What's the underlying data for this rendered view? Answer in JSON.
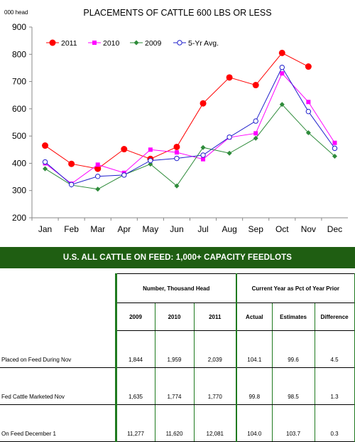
{
  "chart_data": {
    "type": "line",
    "title": "PLACEMENTS  OF CATTLE  600 LBS OR LESS",
    "unit_label": "000 head",
    "categories": [
      "Jan",
      "Feb",
      "Mar",
      "Apr",
      "May",
      "Jun",
      "Jul",
      "Aug",
      "Sep",
      "Oct",
      "Nov",
      "Dec"
    ],
    "ylim": [
      200,
      900
    ],
    "yticks": [
      200,
      300,
      400,
      500,
      600,
      700,
      800,
      900
    ],
    "grid": false,
    "legend_position": "top-left",
    "series": [
      {
        "name": "2011",
        "color": "#ff0000",
        "marker": "circle-filled",
        "values": [
          465,
          398,
          380,
          452,
          416,
          460,
          620,
          715,
          687,
          805,
          755,
          null
        ]
      },
      {
        "name": "2010",
        "color": "#ff00ff",
        "marker": "square-filled",
        "values": [
          400,
          325,
          395,
          365,
          450,
          440,
          415,
          495,
          510,
          730,
          625,
          475
        ]
      },
      {
        "name": "2009",
        "color": "#2e8b3a",
        "marker": "diamond-filled",
        "values": [
          380,
          320,
          305,
          358,
          397,
          317,
          458,
          437,
          492,
          616,
          512,
          426
        ]
      },
      {
        "name": "5-Yr Avg.",
        "color": "#2020cc",
        "marker": "circle-open",
        "values": [
          405,
          322,
          352,
          357,
          410,
          418,
          430,
          496,
          555,
          752,
          590,
          455
        ]
      }
    ]
  },
  "banner": {
    "title": "U.S. ALL CATTLE ON FEED: 1,000+ CAPACITY FEEDLOTS"
  },
  "table": {
    "group_headers": [
      "Number, Thousand Head",
      "Current Year as Pct of Year Prior"
    ],
    "columns": [
      "2009",
      "2010",
      "2011",
      "Actual",
      "Estimates",
      "Difference"
    ],
    "rows": [
      {
        "label": "Placed on Feed During Nov",
        "values": [
          "1,844",
          "1,959",
          "2,039",
          "104.1",
          "99.6",
          "4.5"
        ]
      },
      {
        "label": "Fed Cattle Marketed Nov",
        "values": [
          "1,635",
          "1,774",
          "1,770",
          "99.8",
          "98.5",
          "1.3"
        ]
      },
      {
        "label": "On Feed December 1",
        "values": [
          "11,277",
          "11,620",
          "12,081",
          "104.0",
          "103.7",
          "0.3"
        ]
      }
    ]
  }
}
